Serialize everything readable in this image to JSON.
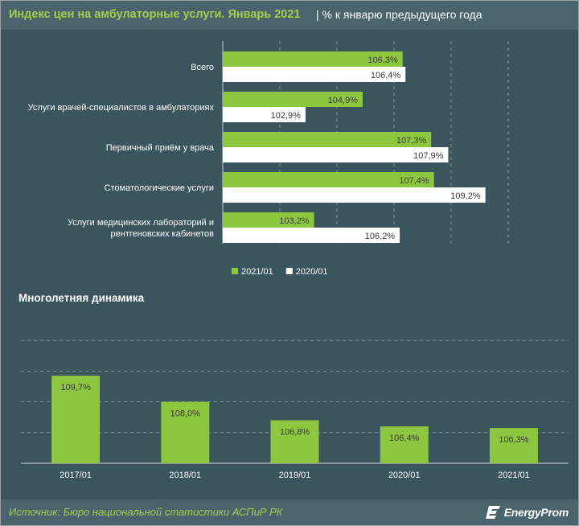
{
  "header": {
    "title": "Индекс цен на амбулаторные услуги. Январь 2021",
    "subtitle": "| % к январю предыдущего  года"
  },
  "colors": {
    "background": "#3b555f",
    "header_band": "#4a646e",
    "accent_green": "#8dc63f",
    "title_green": "#a4ce4d",
    "bar_white": "#ffffff"
  },
  "chart_data": [
    {
      "type": "bar",
      "orientation": "horizontal",
      "title": "Индекс цен на амбулаторные услуги. Январь 2021",
      "subtitle": "| % к январю предыдущего  года",
      "categories": [
        [
          "Всего"
        ],
        [
          "Услуги врачей-специалистов в  амбулаториях"
        ],
        [
          "Первичный приём у врача"
        ],
        [
          "Стоматологические услуги"
        ],
        [
          "Услуги медицинских лабораторий и",
          "рентгеновских кабинетов"
        ]
      ],
      "series": [
        {
          "name": "2021/01",
          "color": "#8dc63f",
          "values": [
            106.3,
            104.9,
            107.3,
            107.4,
            103.2
          ],
          "labels": [
            "106,3%",
            "104,9%",
            "107,3%",
            "107,4%",
            "103,2%"
          ]
        },
        {
          "name": "2020/01",
          "color": "#ffffff",
          "values": [
            106.4,
            102.9,
            107.9,
            109.2,
            106.2
          ],
          "labels": [
            "106,4%",
            "102,9%",
            "107,9%",
            "109,2%",
            "106,2%"
          ]
        }
      ],
      "xlim": [
        100,
        110
      ],
      "grid": true,
      "legend": "bottom-center"
    },
    {
      "type": "bar",
      "title": "Многолетняя  динамика",
      "categories": [
        "2017/01",
        "2018/01",
        "2019/01",
        "2020/01",
        "2021/01"
      ],
      "values": [
        109.7,
        108.0,
        106.8,
        106.4,
        106.3
      ],
      "labels": [
        "109,7%",
        "108,0%",
        "106,8%",
        "106,4%",
        "106,3%"
      ],
      "ylim": [
        104,
        112
      ],
      "grid": true
    }
  ],
  "footer": {
    "source": "Источник: Бюро национальной  статистики АСПиР РК",
    "logo": "EnergyProm"
  }
}
